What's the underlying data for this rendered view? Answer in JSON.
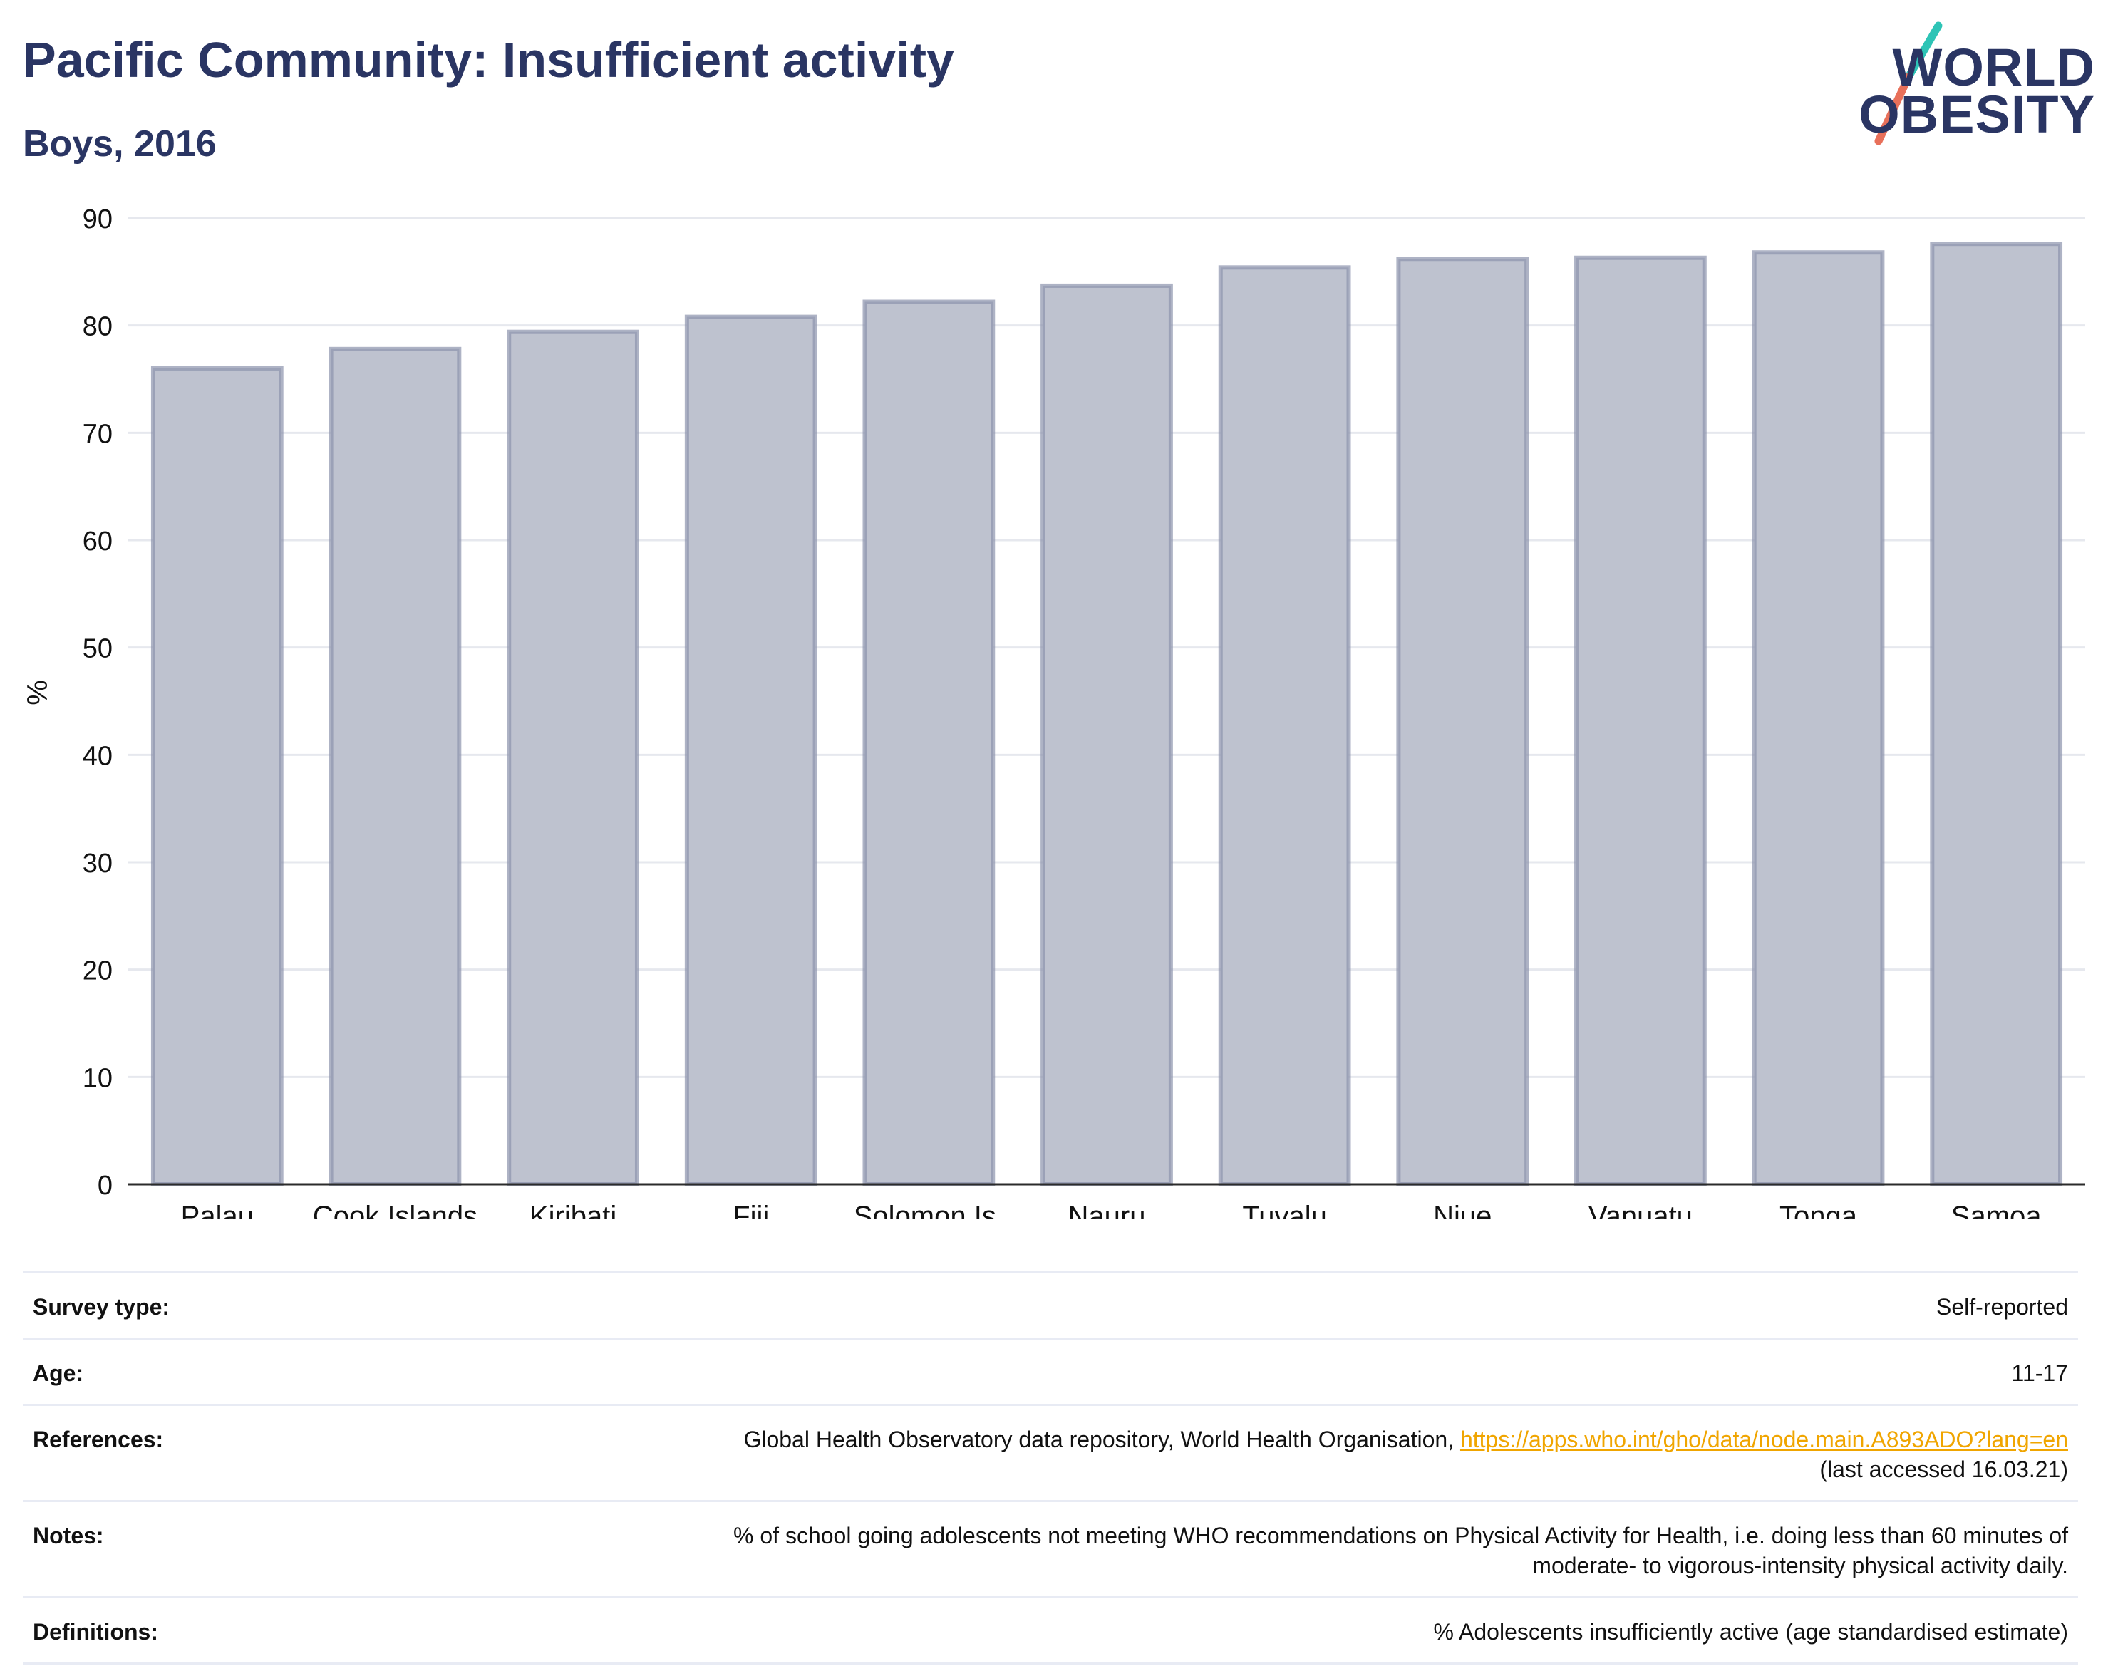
{
  "header": {
    "title": "Pacific Community: Insufficient activity",
    "subtitle": "Boys, 2016"
  },
  "logo": {
    "line1": "WORLD",
    "line2": "OBESITY",
    "slash_colors": [
      "#2ec4b6",
      "#e8705a"
    ]
  },
  "colors": {
    "title": "#2a3563",
    "bar_fill": "#bec2cf",
    "bar_stroke": "#8b93ad",
    "grid": "#e6e8ee",
    "link": "#f0a500"
  },
  "chart_data": {
    "type": "bar",
    "categories": [
      "Palau",
      "Cook Islands",
      "Kiribati",
      "Fiji",
      "Solomon Is.",
      "Nauru",
      "Tuvalu",
      "Niue",
      "Vanuatu",
      "Tonga",
      "Samoa"
    ],
    "values": [
      76.0,
      77.8,
      79.4,
      80.8,
      82.2,
      83.7,
      85.4,
      86.2,
      86.3,
      86.8,
      87.6
    ],
    "ylabel": "%",
    "xlabel": "",
    "ylim": [
      0,
      90
    ],
    "yticks": [
      0,
      10,
      20,
      30,
      40,
      50,
      60,
      70,
      80,
      90
    ],
    "grid": true,
    "legend": "none"
  },
  "info": {
    "survey_type_label": "Survey type:",
    "survey_type_value": "Self-reported",
    "age_label": "Age:",
    "age_value": "11-17",
    "references_label": "References:",
    "references_text": "Global Health Observatory data repository, World Health Organisation,",
    "references_link": "https://apps.who.int/gho/data/node.main.A893ADO?lang=en",
    "references_accessed": "(last accessed 16.03.21)",
    "notes_label": "Notes:",
    "notes_line1": "% of school going adolescents not meeting WHO recommendations on Physical Activity for Health, i.e. doing less than 60 minutes of",
    "notes_line2": "moderate- to vigorous-intensity physical activity daily.",
    "definitions_label": "Definitions:",
    "definitions_value": "% Adolescents insufficiently active (age standardised estimate)"
  }
}
